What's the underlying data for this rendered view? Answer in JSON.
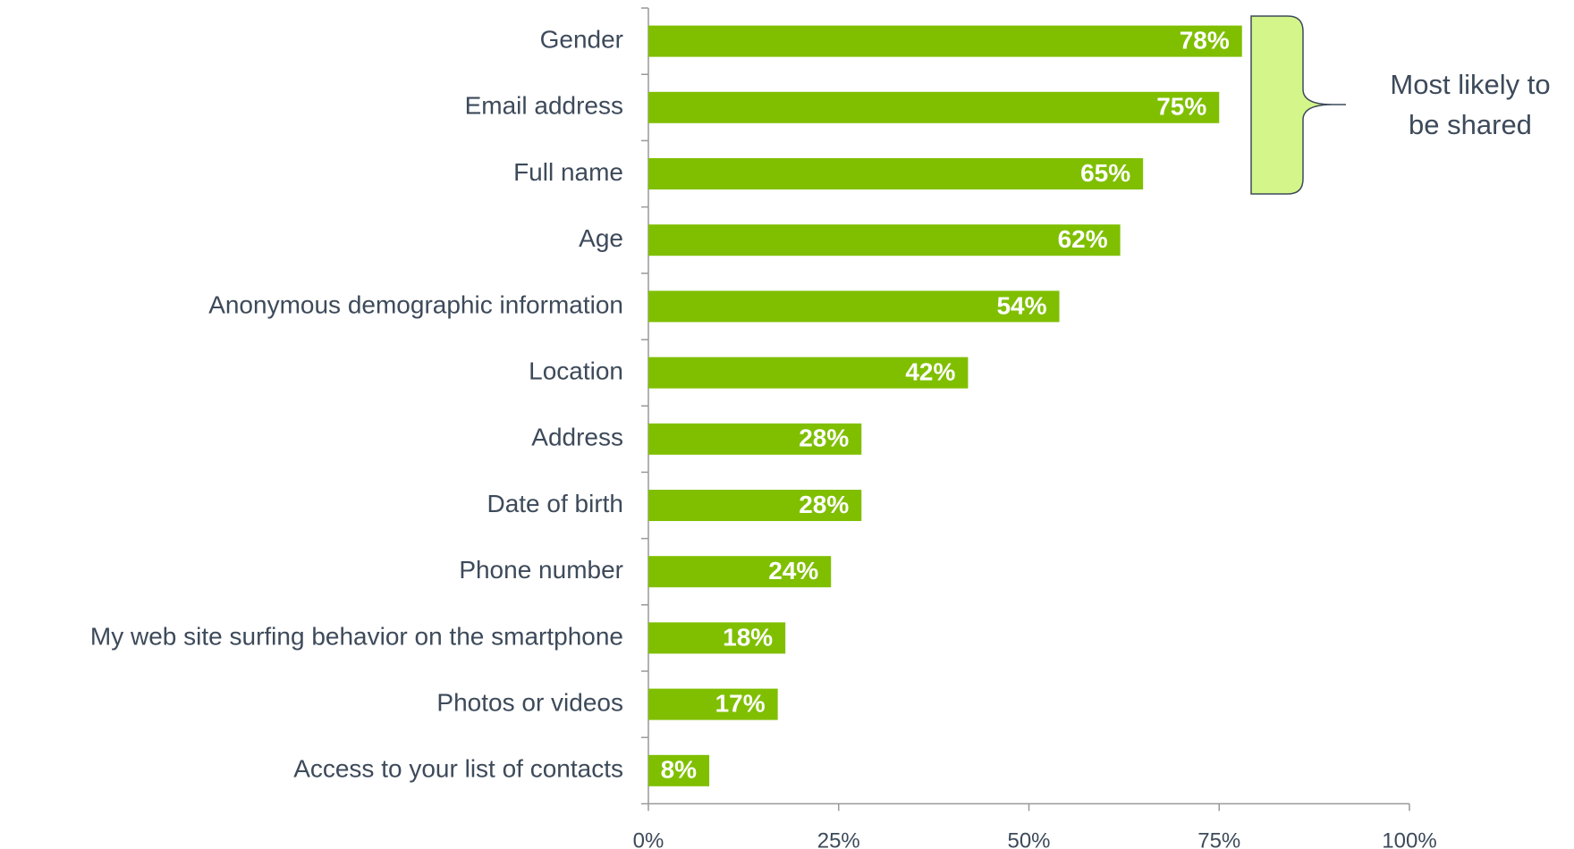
{
  "chart_data": {
    "type": "bar",
    "orientation": "horizontal",
    "categories": [
      "Gender",
      "Email address",
      "Full name",
      "Age",
      "Anonymous demographic information",
      "Location",
      "Address",
      "Date of birth",
      "Phone number",
      "My web site surfing behavior on the smartphone",
      "Photos or videos",
      "Access to your list of contacts"
    ],
    "values": [
      78,
      75,
      65,
      62,
      54,
      42,
      28,
      28,
      24,
      18,
      17,
      8
    ],
    "value_labels": [
      "78%",
      "75%",
      "65%",
      "62%",
      "54%",
      "42%",
      "28%",
      "28%",
      "24%",
      "18%",
      "17%",
      "8%"
    ],
    "color": "#7fbf00",
    "xlim": [
      0,
      100
    ],
    "xticks": [
      {
        "value": 0,
        "label": "0%"
      },
      {
        "value": 25,
        "label": "25%"
      },
      {
        "value": 50,
        "label": "50%"
      },
      {
        "value": 75,
        "label": "75%"
      },
      {
        "value": 100,
        "label": "100%"
      }
    ],
    "annotation": [
      "Most likely to",
      "be shared"
    ]
  }
}
